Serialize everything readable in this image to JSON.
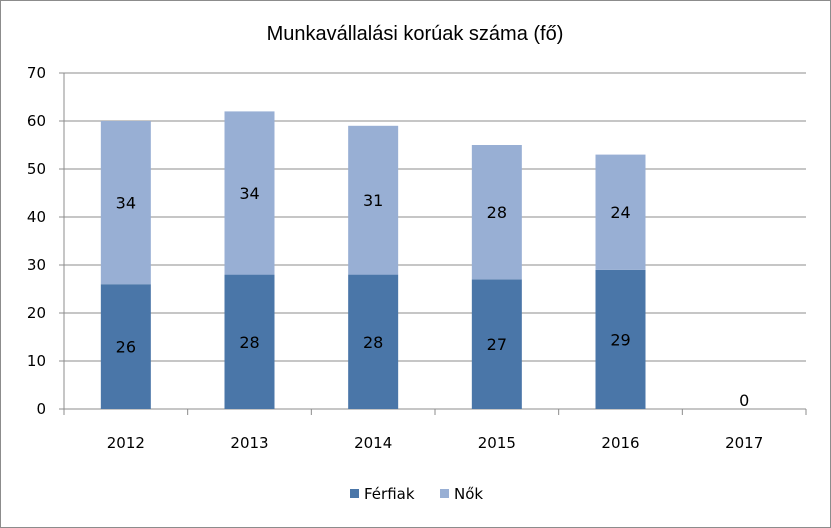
{
  "chart_data": {
    "type": "bar",
    "stacked": true,
    "title": "Munkavállalási korúak száma (fő)",
    "categories": [
      "2012",
      "2013",
      "2014",
      "2015",
      "2016",
      "2017"
    ],
    "series": [
      {
        "name": "Férfiak",
        "values": [
          26,
          28,
          28,
          27,
          29,
          0
        ],
        "color": "#4a76a8"
      },
      {
        "name": "Nők",
        "values": [
          34,
          34,
          31,
          28,
          24,
          null
        ],
        "color": "#98afd4"
      }
    ],
    "ylim": [
      0,
      70
    ],
    "yticks": [
      "0",
      "10",
      "20",
      "30",
      "40",
      "50",
      "60",
      "70"
    ],
    "grid": true,
    "legend": "bottom"
  }
}
